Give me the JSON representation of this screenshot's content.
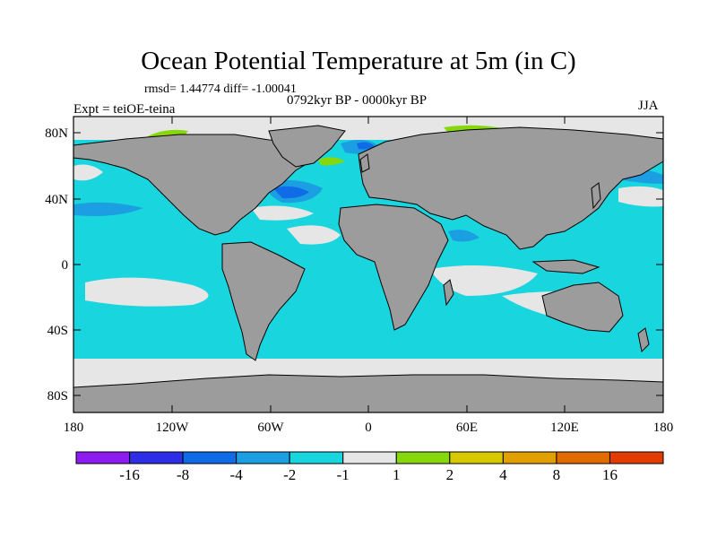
{
  "header": {
    "title": "Ocean Potential Temperature at 5m (in C)",
    "stats": "rmsd= 1.44774 diff= -1.00041",
    "experiment": "Expt = teiOE-teina",
    "period": "0792kyr BP - 0000kyr BP",
    "season": "JJA"
  },
  "axes": {
    "lat_ticks": [
      "80N",
      "40N",
      "0",
      "40S",
      "80S"
    ],
    "lon_ticks": [
      "180",
      "120W",
      "60W",
      "0",
      "60E",
      "120E",
      "180"
    ]
  },
  "colorbar": {
    "colors": [
      "#8c1cf0",
      "#2d2ee6",
      "#0f6ce6",
      "#1c9fe2",
      "#19d5de",
      "#e6e6e6",
      "#86d80c",
      "#d6c900",
      "#e2a000",
      "#e06c00",
      "#e23c00"
    ],
    "labels": [
      "-16",
      "-8",
      "-4",
      "-2",
      "-1",
      "1",
      "2",
      "4",
      "8",
      "16"
    ]
  },
  "colors": {
    "land": "#9c9c9c",
    "ocean_base": "#19d5de",
    "near_zero": "#e6e6e6"
  }
}
